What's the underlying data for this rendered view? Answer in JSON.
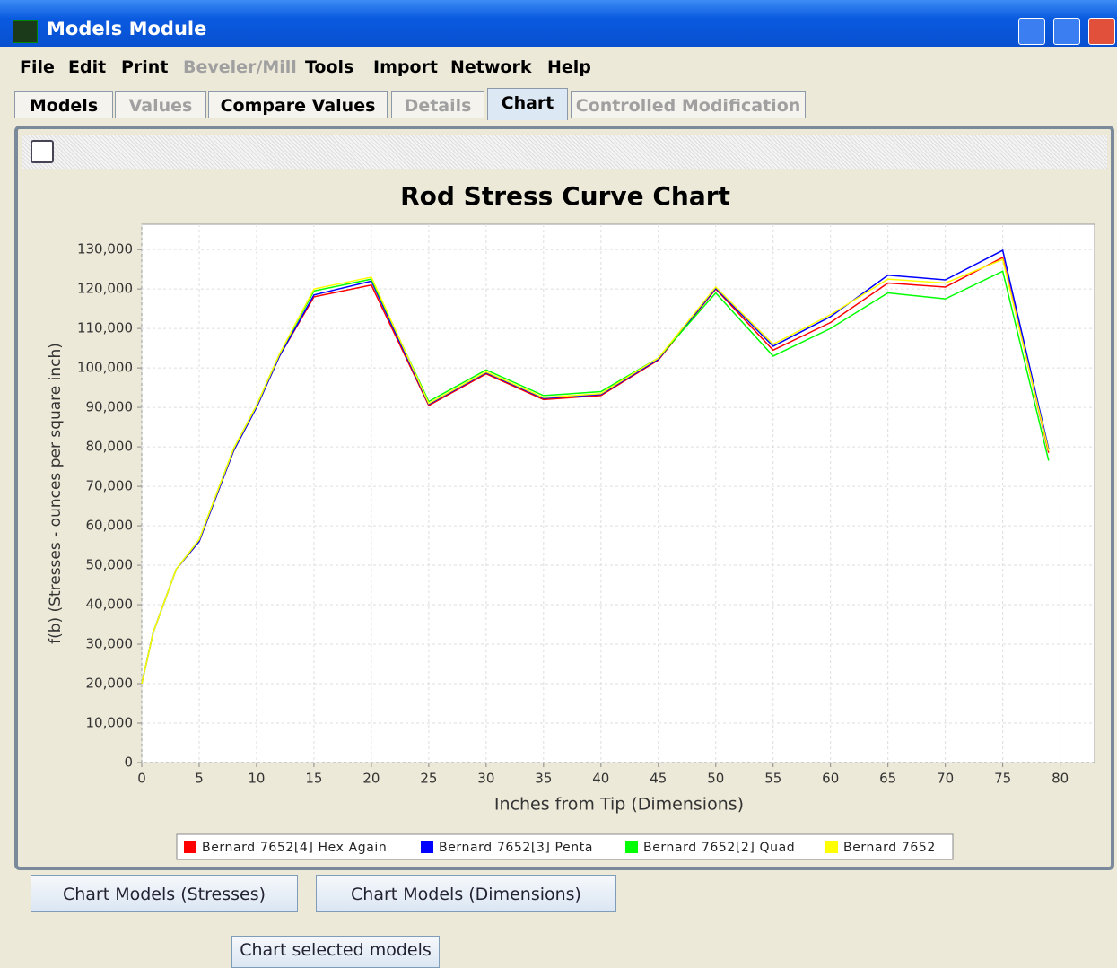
{
  "window": {
    "title": "Models Module"
  },
  "menu": [
    "File",
    "Edit",
    "Print",
    "Beveler/Mill",
    "Tools",
    "Import",
    "Network",
    "Help"
  ],
  "tabs": [
    "Models",
    "Values",
    "Compare Values",
    "Details",
    "Chart",
    "Controlled Modification"
  ],
  "buttons": [
    "Chart Models (Stresses)",
    "Chart Models (Dimensions)",
    "Chart selected models"
  ],
  "chart_data": {
    "type": "line",
    "title": "Rod Stress Curve Chart",
    "x_label": "Inches from Tip (Dimensions)",
    "y_label": "f(b) (Stresses - ounces per square inch)",
    "x": [
      0,
      1,
      3,
      5,
      8,
      10,
      12,
      15,
      20,
      25,
      30,
      35,
      40,
      45,
      50,
      55,
      60,
      65,
      70,
      75,
      79
    ],
    "series": [
      {
        "name": "Bernard 7652[4] Hex Again",
        "color": "#ff0000",
        "values": [
          20000,
          33000,
          49000,
          56000,
          79000,
          90000,
          103000,
          118000,
          121000,
          90500,
          98500,
          92000,
          93000,
          102000,
          120000,
          104500,
          111500,
          121500,
          120500,
          128000,
          78500
        ]
      },
      {
        "name": "Bernard 7652[3] Penta",
        "color": "#0000ff",
        "values": [
          20000,
          33000,
          49000,
          56000,
          79000,
          90000,
          103000,
          118500,
          122000,
          90800,
          98800,
          92300,
          93300,
          102200,
          120200,
          105500,
          113000,
          123500,
          122300,
          129800,
          79500
        ]
      },
      {
        "name": "Bernard 7652[2] Quad",
        "color": "#00ff00",
        "values": [
          20000,
          33000,
          49000,
          56500,
          79500,
          90500,
          103500,
          119500,
          122500,
          91500,
          99500,
          93000,
          94000,
          102500,
          119000,
          103000,
          110000,
          119000,
          117500,
          124500,
          76500
        ]
      },
      {
        "name": "Bernard 7652",
        "color": "#ffff00",
        "values": [
          20000,
          33000,
          49000,
          56500,
          79500,
          90500,
          103500,
          120000,
          123000,
          91000,
          99000,
          92500,
          93500,
          102500,
          120500,
          106000,
          113500,
          122500,
          121500,
          127500,
          79000
        ]
      }
    ],
    "xlim": [
      0,
      83
    ],
    "ylim": [
      0,
      136400
    ],
    "xticks": [
      0,
      5,
      10,
      15,
      20,
      25,
      30,
      35,
      40,
      45,
      50,
      55,
      60,
      65,
      70,
      75,
      80
    ],
    "yticks": [
      0,
      {
        "value": 10000,
        "label": "10,000"
      },
      {
        "value": 20000,
        "label": "20,000"
      },
      {
        "value": 30000,
        "label": "30,000"
      },
      {
        "value": 40000,
        "label": "40,000"
      },
      {
        "value": 50000,
        "label": "50,000"
      },
      {
        "value": 60000,
        "label": "60,000"
      },
      {
        "value": 70000,
        "label": "70,000"
      },
      {
        "value": 80000,
        "label": "80,000"
      },
      {
        "value": 90000,
        "label": "90,000"
      },
      {
        "value": 100000,
        "label": "100,000"
      },
      {
        "value": 110000,
        "label": "110,000"
      },
      {
        "value": 120000,
        "label": "120,000"
      },
      {
        "value": 130000,
        "label": "130,000"
      }
    ],
    "grid": true,
    "legend": "bottom"
  }
}
